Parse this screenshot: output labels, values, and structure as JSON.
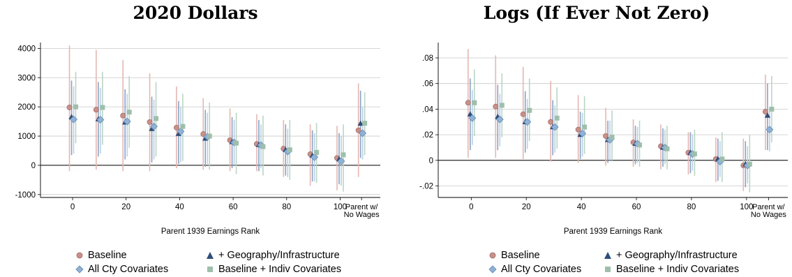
{
  "legend": [
    {
      "label": "Baseline",
      "marker": "circle",
      "color": "#c9908a",
      "ci_color": "#e4b7b2"
    },
    {
      "label": "+ Geography/Infrastructure",
      "marker": "triangle",
      "color": "#2e4e7a",
      "ci_color": "#8aa2c4"
    },
    {
      "label": "All Cty Covariates",
      "marker": "diamond",
      "color": "#8fb2d6",
      "ci_color": "#b9d0e6"
    },
    {
      "label": "Baseline + Indiv Covariates",
      "marker": "square",
      "color": "#9ebfac",
      "ci_color": "#bad6c4"
    }
  ],
  "chart_data": [
    {
      "type": "scatter",
      "title": "2020 Dollars",
      "xlabel": "Parent 1939 Earnings Rank",
      "ylabel": "",
      "xlim": [
        -12,
        115
      ],
      "ylim": [
        -1100,
        4200
      ],
      "x_ticks": [
        0,
        20,
        40,
        60,
        80,
        100
      ],
      "x_extra_tick": {
        "x": 108,
        "label": [
          "Parent w/",
          "No Wages"
        ]
      },
      "y_ticks": [
        -1000,
        0,
        1000,
        2000,
        3000,
        4000
      ],
      "y_tick_labels": [
        "-1000",
        "0",
        "1000",
        "2000",
        "3000",
        "4000"
      ],
      "zero_line": true,
      "grid": true,
      "x": [
        0,
        10,
        20,
        30,
        40,
        50,
        60,
        70,
        80,
        90,
        100,
        108
      ],
      "series": [
        {
          "name": "Baseline",
          "y": [
            1980,
            1900,
            1700,
            1480,
            1290,
            1070,
            860,
            730,
            570,
            380,
            250,
            1200
          ],
          "ci_low": [
            -200,
            -150,
            -200,
            -200,
            -100,
            -150,
            -200,
            -200,
            -400,
            -700,
            -850,
            -400
          ],
          "ci_high": [
            4100,
            3950,
            3600,
            3150,
            2700,
            2300,
            1950,
            1750,
            1550,
            1400,
            1350,
            2800
          ]
        },
        {
          "name": "+ Geography/Infrastructure",
          "y": [
            1650,
            1580,
            1470,
            1250,
            1080,
            920,
            800,
            700,
            530,
            330,
            210,
            1430
          ],
          "ci_low": [
            350,
            300,
            200,
            100,
            50,
            -50,
            -100,
            -200,
            -350,
            -550,
            -650,
            250
          ],
          "ci_high": [
            2900,
            2850,
            2600,
            2350,
            2200,
            1900,
            1650,
            1550,
            1400,
            1200,
            1100,
            2550
          ]
        },
        {
          "name": "All Cty Covariates",
          "y": [
            1570,
            1560,
            1500,
            1330,
            1160,
            980,
            780,
            690,
            470,
            280,
            140,
            1100
          ],
          "ci_low": [
            400,
            400,
            300,
            200,
            100,
            50,
            0,
            -100,
            -400,
            -550,
            -700,
            200
          ],
          "ci_high": [
            2700,
            2650,
            2450,
            2250,
            2000,
            1800,
            1550,
            1400,
            1250,
            1100,
            1000,
            2000
          ]
        },
        {
          "name": "Baseline + Indiv Covariates",
          "y": [
            2000,
            1980,
            1820,
            1600,
            1330,
            1000,
            760,
            640,
            530,
            440,
            360,
            1440
          ],
          "ci_low": [
            750,
            700,
            600,
            300,
            150,
            -150,
            -300,
            -350,
            -500,
            -600,
            -900,
            350
          ],
          "ci_high": [
            3200,
            3200,
            3050,
            2850,
            2450,
            2150,
            1800,
            1700,
            1550,
            1450,
            1400,
            2500
          ]
        }
      ]
    },
    {
      "type": "scatter",
      "title": "Logs (If Ever Not Zero)",
      "xlabel": "Parent 1939 Earnings Rank",
      "ylabel": "",
      "xlim": [
        -12,
        115
      ],
      "ylim": [
        -0.029,
        0.092
      ],
      "x_ticks": [
        0,
        20,
        40,
        60,
        80,
        100
      ],
      "x_extra_tick": {
        "x": 108,
        "label": [
          "Parent w/",
          "No Wages"
        ]
      },
      "y_ticks": [
        -0.02,
        0,
        0.02,
        0.04,
        0.06,
        0.08
      ],
      "y_tick_labels": [
        "-.02",
        "0",
        ".02",
        ".04",
        ".06",
        ".08"
      ],
      "zero_line": true,
      "grid": true,
      "x": [
        0,
        10,
        20,
        30,
        40,
        50,
        60,
        70,
        80,
        90,
        100,
        108
      ],
      "series": [
        {
          "name": "Baseline",
          "y": [
            0.045,
            0.042,
            0.036,
            0.03,
            0.024,
            0.019,
            0.014,
            0.011,
            0.006,
            0.001,
            -0.004,
            0.038
          ],
          "ci_low": [
            0.002,
            0.002,
            0.001,
            -0.001,
            -0.002,
            -0.004,
            -0.005,
            -0.007,
            -0.011,
            -0.017,
            -0.024,
            0.008
          ],
          "ci_high": [
            0.087,
            0.082,
            0.073,
            0.062,
            0.051,
            0.041,
            0.032,
            0.028,
            0.022,
            0.018,
            0.017,
            0.067
          ]
        },
        {
          "name": "+ Geography/Infrastructure",
          "y": [
            0.036,
            0.034,
            0.03,
            0.026,
            0.02,
            0.016,
            0.013,
            0.01,
            0.006,
            0.001,
            -0.003,
            0.035
          ],
          "ci_low": [
            0.008,
            0.008,
            0.006,
            0.004,
            0.001,
            -0.002,
            -0.003,
            -0.005,
            -0.01,
            -0.016,
            -0.021,
            0.008
          ],
          "ci_high": [
            0.064,
            0.059,
            0.054,
            0.047,
            0.038,
            0.031,
            0.027,
            0.025,
            0.022,
            0.017,
            0.015,
            0.06
          ]
        },
        {
          "name": "All Cty Covariates",
          "y": [
            0.033,
            0.032,
            0.03,
            0.026,
            0.021,
            0.016,
            0.013,
            0.01,
            0.005,
            -0.001,
            -0.004,
            0.024
          ],
          "ci_low": [
            0.012,
            0.011,
            0.009,
            0.006,
            0.003,
            0.0,
            -0.002,
            -0.003,
            -0.008,
            -0.013,
            -0.018,
            0.007
          ],
          "ci_high": [
            0.055,
            0.052,
            0.048,
            0.043,
            0.037,
            0.031,
            0.026,
            0.024,
            0.02,
            0.015,
            0.011,
            0.041
          ]
        },
        {
          "name": "Baseline + Indiv Covariates",
          "y": [
            0.045,
            0.043,
            0.039,
            0.033,
            0.026,
            0.018,
            0.012,
            0.009,
            0.005,
            0.001,
            -0.003,
            0.04
          ],
          "ci_low": [
            0.019,
            0.018,
            0.015,
            0.009,
            0.005,
            0.0,
            -0.005,
            -0.007,
            -0.012,
            -0.017,
            -0.025,
            0.014
          ],
          "ci_high": [
            0.071,
            0.068,
            0.064,
            0.057,
            0.05,
            0.039,
            0.031,
            0.027,
            0.024,
            0.022,
            0.02,
            0.066
          ]
        }
      ]
    }
  ]
}
